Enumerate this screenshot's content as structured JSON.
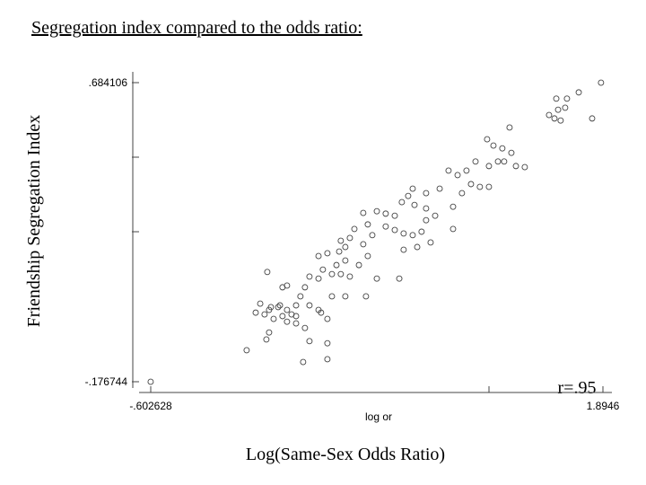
{
  "chart_data": {
    "type": "scatter",
    "title": "Segregation index compared to the odds ratio:",
    "x_label": "log or",
    "y_label": "Friendship Segregation Index",
    "x_title": "Log(Same-Sex Odds Ratio)",
    "annotation": "r=.95",
    "color": "#444444",
    "xlim": [
      -0.602628,
      1.8946
    ],
    "ylim": [
      -0.176744,
      0.684106
    ],
    "xticks": [
      {
        "value": -0.602628,
        "label": "-.602628"
      },
      {
        "value": 1.2653,
        "label": null
      },
      1.8946
    ],
    "yticks": [
      {
        "value": -0.176744,
        "label": "-.176744"
      },
      {
        "value": 0.255,
        "label": null
      },
      {
        "value": 0.4695,
        "label": null
      },
      {
        "value": 0.684106,
        "label": ".684106"
      }
    ],
    "x": [
      -0.603,
      1.884,
      1.637,
      1.696,
      1.761,
      1.835,
      1.597,
      1.647,
      1.627,
      1.686,
      1.661,
      1.379,
      1.255,
      1.29,
      1.339,
      1.389,
      1.349,
      1.414,
      1.463,
      1.315,
      1.265,
      1.191,
      1.141,
      1.092,
      1.042,
      1.166,
      1.215,
      1.265,
      1.116,
      0.993,
      0.918,
      0.844,
      0.819,
      0.854,
      0.784,
      0.745,
      0.695,
      0.646,
      0.571,
      0.596,
      0.621,
      0.695,
      0.745,
      0.794,
      0.844,
      0.893,
      0.918,
      0.968,
      0.943,
      0.869,
      0.794,
      1.067,
      0.522,
      0.497,
      0.447,
      0.472,
      0.438,
      0.571,
      0.596,
      0.547,
      0.472,
      0.423,
      0.373,
      0.324,
      0.348,
      0.398,
      0.447,
      0.497,
      0.324,
      0.274,
      0.15,
      0.125,
      0.041,
      0.249,
      0.224,
      0.274,
      0.324,
      0.373,
      0.398,
      0.472,
      0.586,
      0.646,
      0.77,
      0.002,
      -0.023,
      0.026,
      0.051,
      0.101,
      0.15,
      0.175,
      0.125,
      0.2,
      0.15,
      0.076,
      0.2,
      0.249,
      0.051,
      0.036,
      0.274,
      0.373,
      -0.073,
      0.373,
      0.239,
      0.338,
      0.061,
      0.111,
      0.2,
      0.918,
      1.067
    ],
    "y": [
      -0.177,
      0.684,
      0.638,
      0.638,
      0.656,
      0.581,
      0.591,
      0.606,
      0.581,
      0.612,
      0.575,
      0.555,
      0.521,
      0.503,
      0.495,
      0.482,
      0.457,
      0.444,
      0.441,
      0.457,
      0.444,
      0.457,
      0.431,
      0.418,
      0.431,
      0.392,
      0.384,
      0.384,
      0.366,
      0.379,
      0.366,
      0.379,
      0.358,
      0.332,
      0.34,
      0.301,
      0.307,
      0.314,
      0.309,
      0.276,
      0.245,
      0.27,
      0.26,
      0.25,
      0.245,
      0.255,
      0.288,
      0.301,
      0.224,
      0.211,
      0.203,
      0.263,
      0.263,
      0.237,
      0.229,
      0.211,
      0.198,
      0.219,
      0.185,
      0.159,
      0.172,
      0.159,
      0.193,
      0.185,
      0.146,
      0.133,
      0.133,
      0.126,
      0.12,
      0.126,
      0.1,
      0.095,
      0.139,
      0.095,
      0.069,
      0.043,
      0.03,
      0.004,
      0.069,
      0.069,
      0.069,
      0.12,
      0.12,
      0.048,
      0.022,
      0.017,
      0.03,
      0.038,
      0.03,
      0.017,
      0.012,
      0.012,
      -0.004,
      0.004,
      -0.009,
      -0.022,
      -0.035,
      -0.055,
      -0.06,
      -0.066,
      -0.086,
      -0.112,
      -0.12,
      0.022,
      0.038,
      0.043,
      0.043,
      0.322,
      0.327
    ]
  }
}
